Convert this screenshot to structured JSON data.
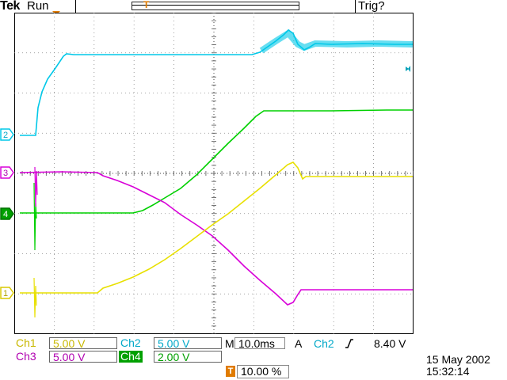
{
  "header": {
    "brand": "Tek",
    "state": "Run",
    "trigger_status": "Trig?",
    "record_marker": "T"
  },
  "trigger_marker": "T",
  "channels": [
    {
      "id": "ch1",
      "label": "Ch1",
      "marker": "1",
      "color": "#e8e000",
      "scale": "5.00 V"
    },
    {
      "id": "ch2",
      "label": "Ch2",
      "marker": "2",
      "color": "#00c8e8",
      "scale": "5.00 V"
    },
    {
      "id": "ch3",
      "label": "Ch3",
      "marker": "3",
      "color": "#d800d8",
      "scale": "5.00 V"
    },
    {
      "id": "ch4",
      "label": "Ch4",
      "marker": "4",
      "color": "#00d000",
      "scale": "2.00 V"
    }
  ],
  "timebase": {
    "prefix": "M",
    "value": "10.0ms"
  },
  "trigger": {
    "prefix": "A",
    "source": "Ch2",
    "slope_icon": "rising-edge-icon",
    "level": "8.40 V",
    "position": "10.00 %",
    "position_marker": "T"
  },
  "timestamp": {
    "date": "15 May 2002",
    "time": "15:32:14"
  }
}
